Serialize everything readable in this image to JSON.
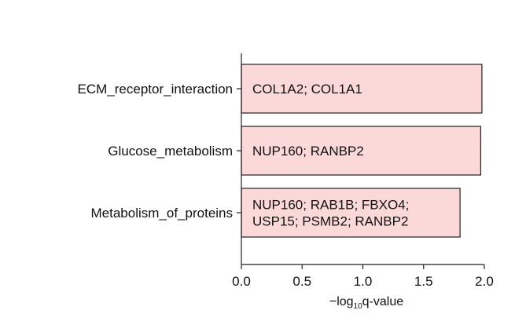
{
  "chart_data": {
    "type": "bar",
    "orientation": "horizontal",
    "title": "",
    "categories": [
      "ECM_receptor_interaction",
      "Glucose_metabolism",
      "Metabolism_of_proteins"
    ],
    "values": [
      1.98,
      1.97,
      1.8
    ],
    "bar_labels": [
      [
        "COL1A2; COL1A1"
      ],
      [
        "NUP160; RANBP2"
      ],
      [
        "NUP160; RAB1B; FBXO4;",
        "USP15; PSMB2; RANBP2"
      ]
    ],
    "xlabel": {
      "prefix": "−log",
      "subscript": "10",
      "suffix": "q-value"
    },
    "xlim": [
      0,
      2.0
    ],
    "xticks": [
      "0.0",
      "0.5",
      "1.0",
      "1.5",
      "2.0"
    ],
    "grid": false,
    "legend": "none",
    "colors": {
      "bar_fill": "#fcd9d9",
      "bar_stroke": "#222222",
      "axis": "#222222"
    }
  }
}
